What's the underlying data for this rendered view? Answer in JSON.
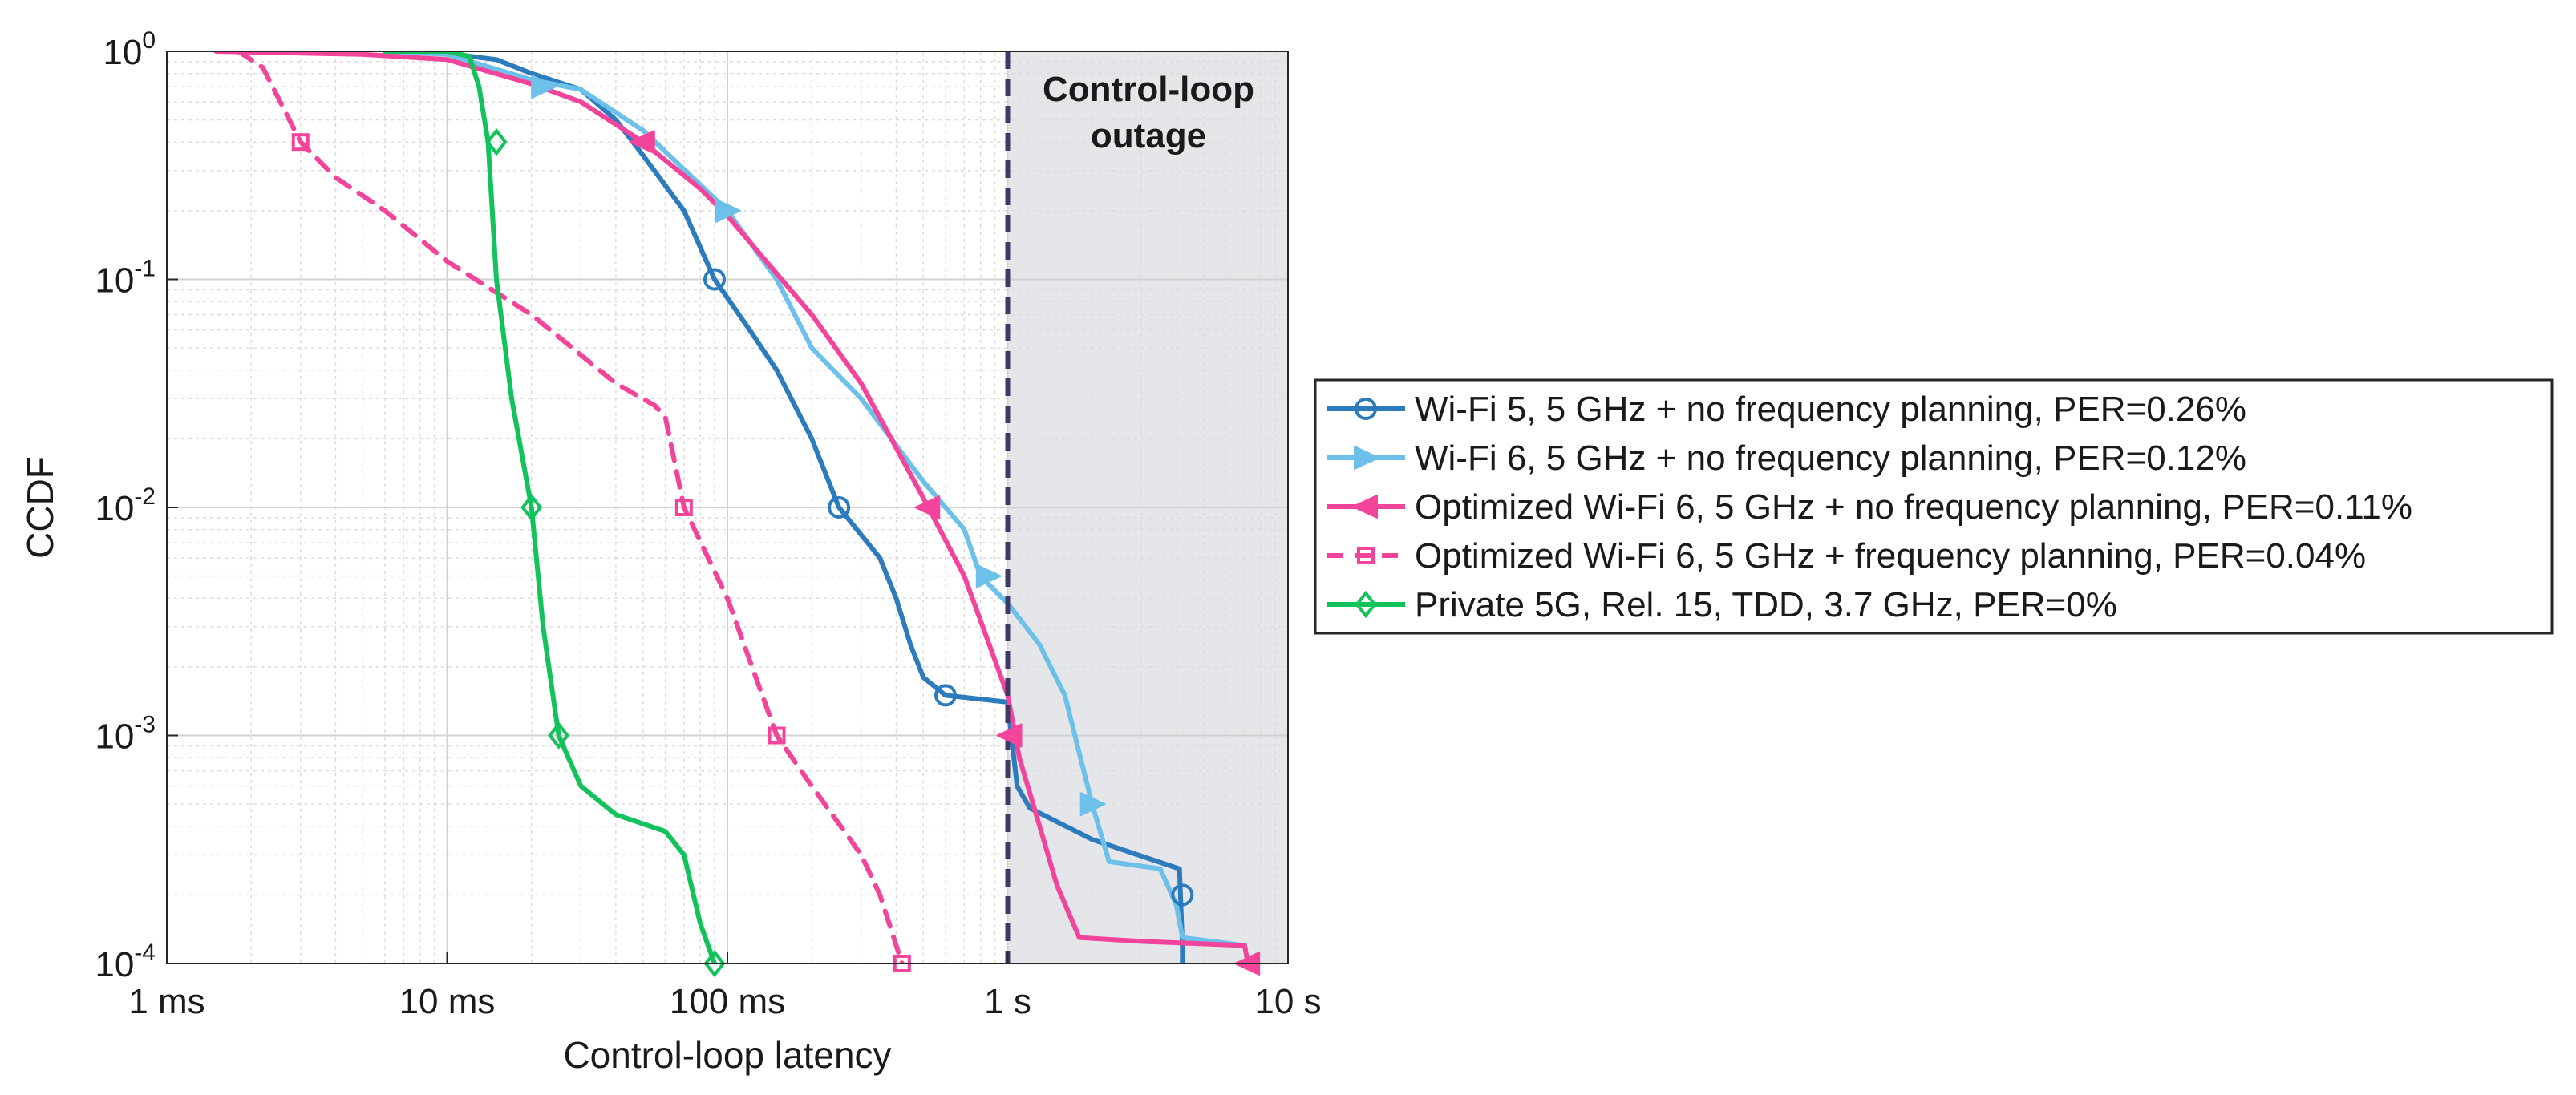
{
  "chart_data": {
    "type": "line",
    "xscale": "log",
    "yscale": "log",
    "xlabel": "Control-loop latency",
    "ylabel": "CCDF",
    "xlim_s": [
      0.001,
      10
    ],
    "ylim": [
      0.0001,
      1
    ],
    "grid": true,
    "x_ticks": [
      {
        "value": 0.001,
        "label": "1 ms"
      },
      {
        "value": 0.01,
        "label": "10 ms"
      },
      {
        "value": 0.1,
        "label": "100 ms"
      },
      {
        "value": 1,
        "label": "1 s"
      },
      {
        "value": 10,
        "label": "10 s"
      }
    ],
    "y_ticks": [
      {
        "value": 1,
        "base": "10",
        "exp": "0"
      },
      {
        "value": 0.1,
        "base": "10",
        "exp": "-1"
      },
      {
        "value": 0.01,
        "base": "10",
        "exp": "-2"
      },
      {
        "value": 0.001,
        "base": "10",
        "exp": "-3"
      },
      {
        "value": 0.0001,
        "base": "10",
        "exp": "-4"
      }
    ],
    "outage": {
      "threshold_s": 1,
      "label_line1": "Control-loop",
      "label_line2": "outage",
      "shade_color": "#e5e6e9",
      "line_color": "#3d3a63"
    },
    "legend_position": "right",
    "series": [
      {
        "name": "Wi-Fi 5, 5 GHz + no frequency planning, PER=0.26%",
        "color": "#2b7bbd",
        "dash": "solid",
        "marker": "circle",
        "points": [
          [
            0.006,
            1
          ],
          [
            0.01,
            0.98
          ],
          [
            0.015,
            0.92
          ],
          [
            0.02,
            0.8
          ],
          [
            0.03,
            0.68
          ],
          [
            0.04,
            0.5
          ],
          [
            0.05,
            0.35
          ],
          [
            0.07,
            0.2
          ],
          [
            0.09,
            0.1
          ],
          [
            0.12,
            0.06
          ],
          [
            0.15,
            0.04
          ],
          [
            0.2,
            0.02
          ],
          [
            0.25,
            0.01
          ],
          [
            0.35,
            0.006
          ],
          [
            0.4,
            0.004
          ],
          [
            0.45,
            0.0025
          ],
          [
            0.5,
            0.0018
          ],
          [
            0.6,
            0.0015
          ],
          [
            1.0,
            0.0014
          ],
          [
            1.08,
            0.0006
          ],
          [
            1.2,
            0.00048
          ],
          [
            2.0,
            0.00035
          ],
          [
            4.1,
            0.00026
          ],
          [
            4.2,
            0.00012
          ],
          [
            4.2,
            0.0001
          ]
        ],
        "markers": [
          [
            0.09,
            0.1
          ],
          [
            0.25,
            0.01
          ],
          [
            0.6,
            0.0015
          ],
          [
            4.2,
            0.0002
          ]
        ]
      },
      {
        "name": "Wi-Fi 6, 5 GHz + no frequency planning, PER=0.12%",
        "color": "#6cc0ea",
        "dash": "solid",
        "marker": "triangle-right",
        "points": [
          [
            0.006,
            1
          ],
          [
            0.01,
            0.97
          ],
          [
            0.02,
            0.75
          ],
          [
            0.03,
            0.68
          ],
          [
            0.05,
            0.45
          ],
          [
            0.08,
            0.26
          ],
          [
            0.1,
            0.2
          ],
          [
            0.15,
            0.1
          ],
          [
            0.2,
            0.05
          ],
          [
            0.3,
            0.03
          ],
          [
            0.5,
            0.013
          ],
          [
            0.7,
            0.008
          ],
          [
            0.8,
            0.005
          ],
          [
            1.0,
            0.0038
          ],
          [
            1.3,
            0.0025
          ],
          [
            1.6,
            0.0015
          ],
          [
            2.0,
            0.0005
          ],
          [
            2.3,
            0.00028
          ],
          [
            3.5,
            0.00026
          ],
          [
            4.0,
            0.00018
          ],
          [
            4.2,
            0.00013
          ],
          [
            7.0,
            0.00012
          ]
        ],
        "markers": [
          [
            0.022,
            0.7
          ],
          [
            0.1,
            0.2
          ],
          [
            0.85,
            0.005
          ],
          [
            2.0,
            0.0005
          ]
        ]
      },
      {
        "name": "Optimized Wi-Fi 6, 5 GHz + no frequency planning, PER=0.11%",
        "color": "#f2449a",
        "dash": "solid",
        "marker": "triangle-left",
        "points": [
          [
            0.0015,
            1
          ],
          [
            0.005,
            0.97
          ],
          [
            0.01,
            0.92
          ],
          [
            0.02,
            0.72
          ],
          [
            0.03,
            0.6
          ],
          [
            0.05,
            0.4
          ],
          [
            0.08,
            0.25
          ],
          [
            0.1,
            0.19
          ],
          [
            0.2,
            0.07
          ],
          [
            0.3,
            0.035
          ],
          [
            0.5,
            0.011
          ],
          [
            0.7,
            0.005
          ],
          [
            1.0,
            0.0015
          ],
          [
            1.1,
            0.0008
          ],
          [
            1.3,
            0.0004
          ],
          [
            1.5,
            0.00022
          ],
          [
            1.8,
            0.00013
          ],
          [
            3.0,
            0.000125
          ],
          [
            7.0,
            0.00012
          ],
          [
            7.2,
            0.0001
          ]
        ],
        "markers": [
          [
            0.05,
            0.4
          ],
          [
            0.52,
            0.01
          ],
          [
            1.02,
            0.001
          ],
          [
            7.2,
            0.0001
          ]
        ]
      },
      {
        "name": "Optimized Wi-Fi 6, 5 GHz + frequency planning, PER=0.04%",
        "color": "#f2449a",
        "dash": "dashed",
        "marker": "square",
        "points": [
          [
            0.0018,
            1
          ],
          [
            0.0022,
            0.85
          ],
          [
            0.003,
            0.4
          ],
          [
            0.004,
            0.28
          ],
          [
            0.006,
            0.2
          ],
          [
            0.01,
            0.12
          ],
          [
            0.02,
            0.07
          ],
          [
            0.04,
            0.035
          ],
          [
            0.055,
            0.028
          ],
          [
            0.06,
            0.025
          ],
          [
            0.07,
            0.01
          ],
          [
            0.1,
            0.004
          ],
          [
            0.15,
            0.001
          ],
          [
            0.2,
            0.0006
          ],
          [
            0.3,
            0.0003
          ],
          [
            0.35,
            0.0002
          ],
          [
            0.42,
            0.0001
          ]
        ],
        "markers": [
          [
            0.003,
            0.4
          ],
          [
            0.07,
            0.01
          ],
          [
            0.15,
            0.001
          ],
          [
            0.42,
            0.0001
          ]
        ]
      },
      {
        "name": "Private 5G, Rel. 15, TDD, 3.7 GHz, PER=0%",
        "color": "#12c25a",
        "dash": "solid",
        "marker": "diamond",
        "points": [
          [
            0.006,
            1
          ],
          [
            0.01,
            1
          ],
          [
            0.012,
            0.95
          ],
          [
            0.013,
            0.7
          ],
          [
            0.014,
            0.4
          ],
          [
            0.015,
            0.1
          ],
          [
            0.017,
            0.03
          ],
          [
            0.02,
            0.01
          ],
          [
            0.022,
            0.003
          ],
          [
            0.025,
            0.001
          ],
          [
            0.03,
            0.0006
          ],
          [
            0.04,
            0.00045
          ],
          [
            0.06,
            0.00038
          ],
          [
            0.07,
            0.0003
          ],
          [
            0.08,
            0.00015
          ],
          [
            0.09,
            0.0001
          ]
        ],
        "markers": [
          [
            0.015,
            0.4
          ],
          [
            0.02,
            0.01
          ],
          [
            0.025,
            0.001
          ],
          [
            0.09,
            0.0001
          ]
        ]
      }
    ]
  }
}
